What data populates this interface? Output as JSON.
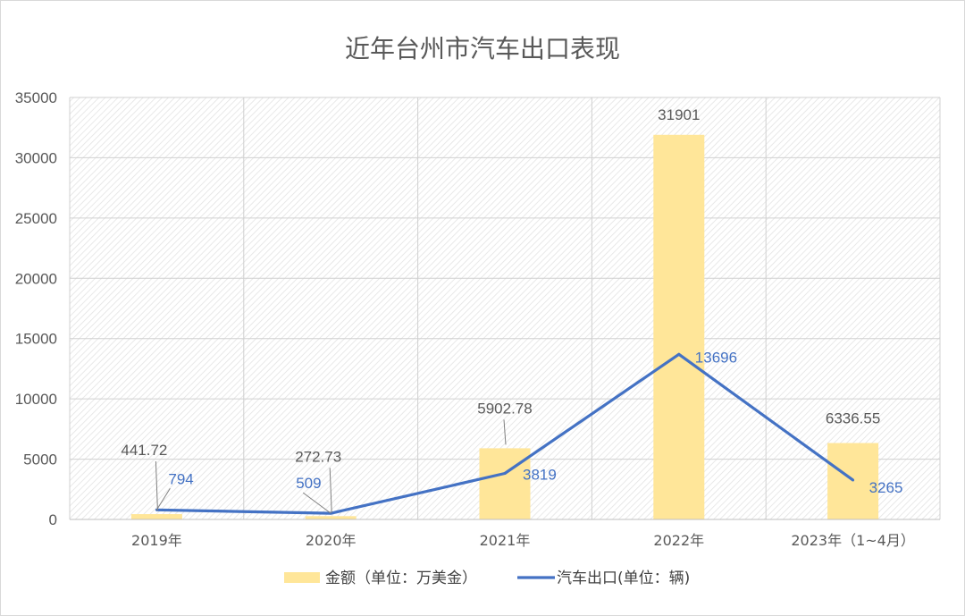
{
  "chart_data": {
    "type": "bar",
    "title": "近年台州市汽车出口表现",
    "categories": [
      "2019年",
      "2020年",
      "2021年",
      "2022年",
      "2023年（1~4月）"
    ],
    "ylim": [
      0,
      35000
    ],
    "yticks": [
      0,
      5000,
      10000,
      15000,
      20000,
      25000,
      30000,
      35000
    ],
    "grid": true,
    "legend_position": "bottom",
    "series": [
      {
        "name": "金额（单位：万美金）",
        "type": "bar",
        "color": "#ffe699",
        "values": [
          441.72,
          272.73,
          5902.78,
          31901,
          6336.55
        ],
        "labels": [
          "441.72",
          "272.73",
          "5902.78",
          "31901",
          "6336.55"
        ]
      },
      {
        "name": "汽车出口(单位：辆)",
        "type": "line",
        "color": "#4472c4",
        "values": [
          794,
          509,
          3819,
          13696,
          3265
        ],
        "labels": [
          "794",
          "509",
          "3819",
          "13696",
          "3265"
        ]
      }
    ]
  }
}
